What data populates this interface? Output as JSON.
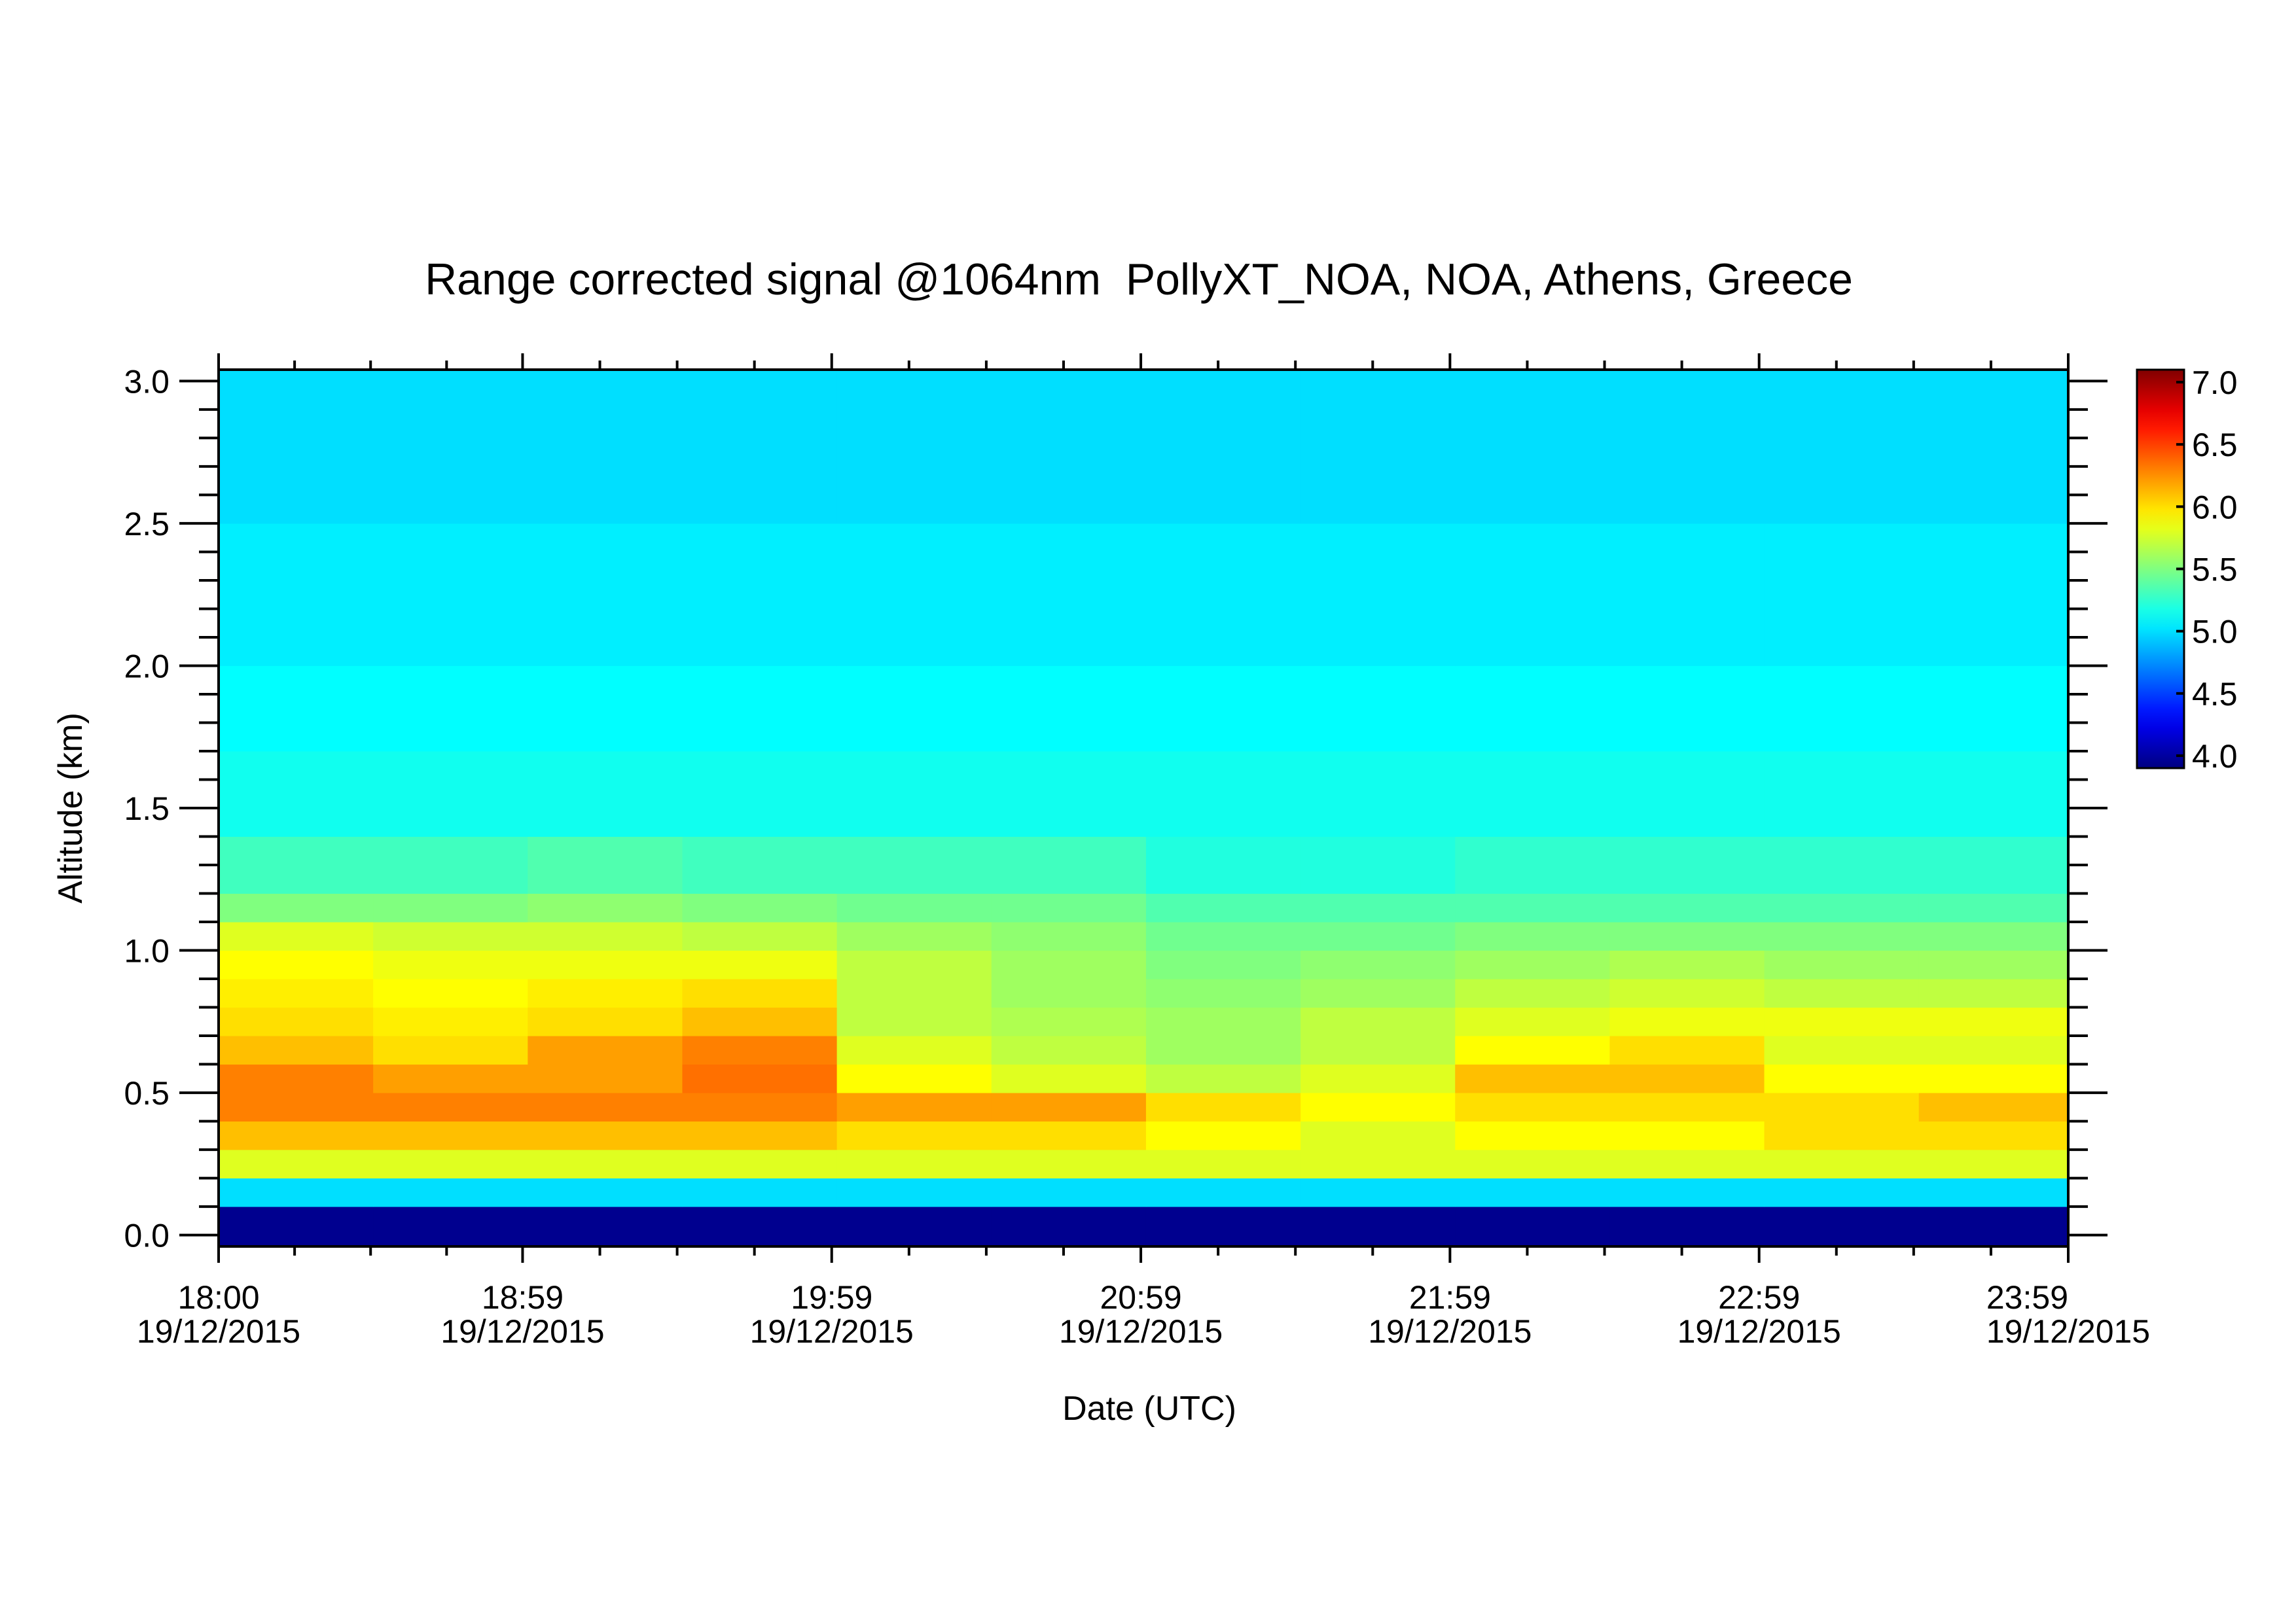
{
  "chart_data": {
    "type": "heatmap",
    "title": "Range corrected signal @1064nm  PollyXT_NOA, NOA, Athens, Greece",
    "xlabel": "Date (UTC)",
    "ylabel": "Altitude (km)",
    "xlim": [
      "18:00",
      "23:59"
    ],
    "xticks": [
      "18:00",
      "18:59",
      "19:59",
      "20:59",
      "21:59",
      "22:59",
      "23:59"
    ],
    "xtick_date": "19/12/2015",
    "ylim": [
      -0.04,
      3.04
    ],
    "yticks": [
      {
        "value": 0,
        "label": "0.0"
      },
      0.5,
      {
        "value": 1,
        "label": "1.0"
      },
      1.5,
      {
        "value": 2,
        "label": "2.0"
      },
      2.5,
      {
        "value": 3,
        "label": "3.0"
      }
    ],
    "colormap": "jet",
    "clim": [
      3.9,
      7.1
    ],
    "cticks": [
      {
        "value": 4,
        "label": "4.0"
      },
      4.5,
      {
        "value": 5,
        "label": "5.0"
      },
      5.5,
      {
        "value": 6,
        "label": "6.0"
      },
      6.5,
      {
        "value": 7,
        "label": "7.0"
      }
    ],
    "x_edges": [
      "18:00",
      "18:30",
      "19:00",
      "19:30",
      "20:00",
      "20:30",
      "21:00",
      "21:30",
      "22:00",
      "22:30",
      "23:00",
      "23:30",
      "23:59"
    ],
    "y_edges": [
      -0.04,
      0.1,
      0.2,
      0.3,
      0.4,
      0.5,
      0.6,
      0.7,
      0.8,
      0.9,
      1.0,
      1.1,
      1.2,
      1.4,
      1.7,
      2.0,
      2.5,
      3.04
    ],
    "z": [
      [
        3.95,
        3.95,
        3.95,
        3.95,
        3.95,
        3.95,
        3.95,
        3.95,
        3.95,
        3.95,
        3.95,
        3.95
      ],
      [
        5.0,
        5.0,
        5.0,
        5.0,
        5.0,
        5.0,
        5.0,
        5.0,
        5.0,
        5.0,
        5.0,
        5.0
      ],
      [
        5.8,
        5.8,
        5.8,
        5.8,
        5.8,
        5.8,
        5.8,
        5.8,
        5.8,
        5.8,
        5.8,
        5.8
      ],
      [
        6.1,
        6.1,
        6.1,
        6.1,
        6.0,
        6.0,
        5.9,
        5.8,
        5.9,
        5.9,
        6.0,
        6.0
      ],
      [
        6.3,
        6.3,
        6.3,
        6.3,
        6.2,
        6.2,
        6.0,
        5.9,
        6.0,
        6.0,
        6.0,
        6.1
      ],
      [
        6.3,
        6.2,
        6.2,
        6.35,
        5.9,
        5.8,
        5.7,
        5.8,
        6.1,
        6.1,
        5.9,
        5.9
      ],
      [
        6.1,
        6.0,
        6.2,
        6.3,
        5.8,
        5.7,
        5.6,
        5.7,
        5.9,
        6.0,
        5.8,
        5.8
      ],
      [
        6.0,
        5.95,
        6.0,
        6.1,
        5.7,
        5.65,
        5.6,
        5.7,
        5.8,
        5.85,
        5.85,
        5.85
      ],
      [
        5.95,
        5.9,
        5.95,
        6.0,
        5.7,
        5.6,
        5.55,
        5.6,
        5.7,
        5.75,
        5.7,
        5.7
      ],
      [
        5.9,
        5.85,
        5.85,
        5.85,
        5.7,
        5.6,
        5.5,
        5.55,
        5.6,
        5.65,
        5.6,
        5.6
      ],
      [
        5.8,
        5.75,
        5.75,
        5.7,
        5.6,
        5.55,
        5.45,
        5.45,
        5.5,
        5.5,
        5.5,
        5.5
      ],
      [
        5.5,
        5.5,
        5.55,
        5.5,
        5.45,
        5.45,
        5.35,
        5.35,
        5.35,
        5.35,
        5.35,
        5.35
      ],
      [
        5.3,
        5.3,
        5.35,
        5.3,
        5.3,
        5.3,
        5.2,
        5.2,
        5.25,
        5.25,
        5.25,
        5.25
      ],
      [
        5.15,
        5.15,
        5.15,
        5.15,
        5.15,
        5.15,
        5.15,
        5.15,
        5.15,
        5.15,
        5.15,
        5.15
      ],
      [
        5.1,
        5.1,
        5.1,
        5.1,
        5.1,
        5.1,
        5.1,
        5.1,
        5.1,
        5.1,
        5.1,
        5.1
      ],
      [
        5.05,
        5.05,
        5.05,
        5.05,
        5.05,
        5.05,
        5.05,
        5.05,
        5.05,
        5.05,
        5.05,
        5.05
      ],
      [
        5.0,
        5.0,
        5.0,
        5.0,
        5.0,
        5.0,
        5.0,
        5.0,
        5.0,
        5.0,
        5.0,
        5.0
      ]
    ]
  }
}
